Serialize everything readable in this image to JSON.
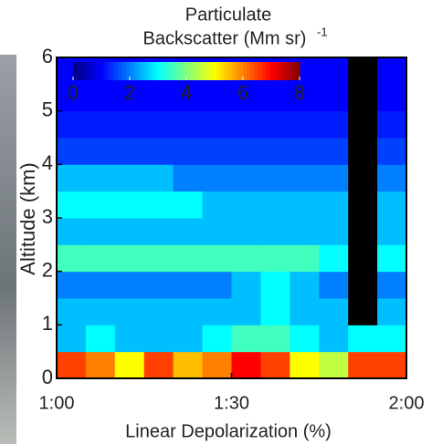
{
  "chart_data": {
    "type": "heatmap",
    "title": "Particulate",
    "colorbar_unit": "Backscatter (Mm sr)",
    "colorbar_unit_exponent": "-1",
    "xlabel": "Linear Depolarization (%)",
    "ylabel": "Altitude (km)",
    "xlim": [
      60,
      120
    ],
    "xticks": [
      {
        "value": 60,
        "label": "1:00"
      },
      {
        "value": 90,
        "label": "1:30"
      },
      {
        "value": 120,
        "label": "2:00"
      }
    ],
    "ylim": [
      0,
      6
    ],
    "yticks": [
      0,
      1,
      2,
      3,
      4,
      5,
      6
    ],
    "zlim": [
      0,
      8
    ],
    "colorbar_ticks": [
      0,
      2,
      4,
      6,
      8
    ],
    "colormap": "jet",
    "x_edges": [
      60,
      65,
      70,
      75,
      80,
      85,
      90,
      95,
      100,
      105,
      110,
      115,
      120
    ],
    "y_edges": [
      0,
      0.5,
      1,
      1.5,
      2,
      2.5,
      3,
      3.5,
      4,
      4.5,
      5,
      5.5,
      6
    ],
    "z": [
      [
        6.5,
        6,
        5,
        6.5,
        5.5,
        6,
        7,
        6.5,
        5,
        4.5,
        6.5,
        6.5
      ],
      [
        2.5,
        3,
        2.5,
        2.5,
        2.5,
        3,
        3.5,
        3.5,
        3,
        2.5,
        3,
        3
      ],
      [
        2.5,
        2.5,
        2.5,
        2.5,
        2.5,
        2.5,
        2.5,
        3,
        2.5,
        2.5,
        null,
        2.5
      ],
      [
        2,
        2,
        2,
        2,
        2,
        2,
        2.5,
        3,
        2.5,
        2,
        null,
        2
      ],
      [
        3.5,
        3.5,
        3.5,
        3.5,
        3.5,
        3.5,
        3.5,
        3.5,
        3.5,
        3,
        null,
        3
      ],
      [
        2.5,
        2.5,
        2.5,
        2.5,
        2.5,
        2.5,
        2.5,
        2.5,
        2.5,
        2.5,
        null,
        2.5
      ],
      [
        3,
        3,
        3,
        3,
        3,
        2.5,
        2.5,
        2.5,
        2.5,
        2.5,
        null,
        2.5
      ],
      [
        2.5,
        2.5,
        2.5,
        2.5,
        2,
        2,
        2,
        2,
        2,
        2,
        null,
        2
      ],
      [
        1.5,
        1.5,
        1.5,
        1.5,
        1.5,
        1.5,
        1.5,
        1.5,
        1.5,
        1.5,
        null,
        1.5
      ],
      [
        1.2,
        1.2,
        1.2,
        1.2,
        1.2,
        1.2,
        1.2,
        1.2,
        1.2,
        1.2,
        null,
        1.2
      ],
      [
        1,
        1,
        1,
        1,
        1,
        1,
        1,
        1,
        1,
        1,
        null,
        1
      ],
      [
        1,
        1,
        1,
        1,
        1,
        1,
        1,
        1,
        1,
        1,
        null,
        1
      ]
    ]
  }
}
